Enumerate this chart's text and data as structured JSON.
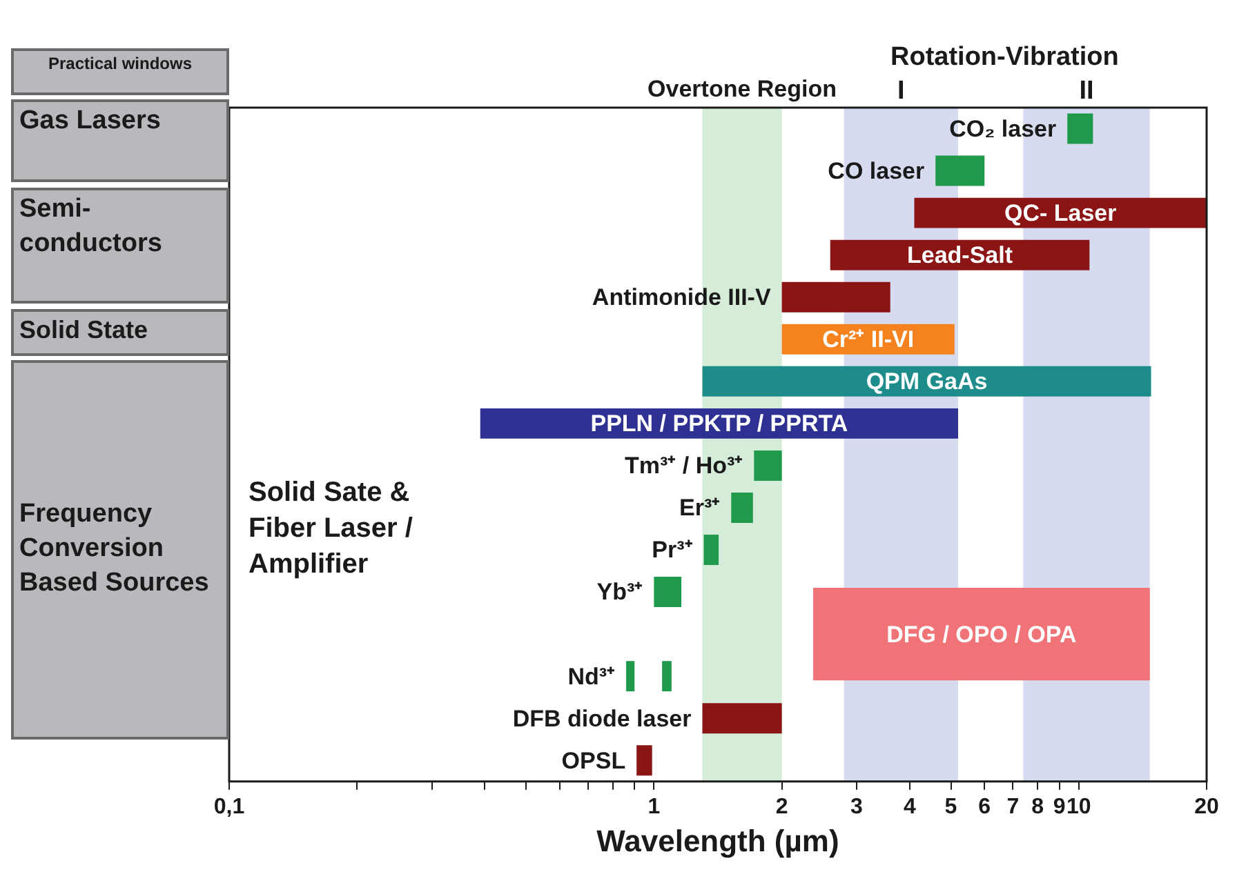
{
  "chart_data": {
    "type": "bar",
    "orientation": "horizontal",
    "log": "x",
    "categories": [
      "CO₂ laser",
      "CO laser",
      "QC- Laser",
      "Lead-Salt",
      "Antimonide III-V",
      "Cr²⁺ II-VI",
      "QPM GaAs",
      "PPLN / PPKTP / PPRTA",
      "Tm³⁺ / Ho³⁺",
      "Er³⁺",
      "Pr³⁺",
      "Yb³⁺",
      "DFG / OPO / OPA",
      "Nd³⁺",
      "DFB diode laser",
      "OPSL"
    ],
    "series": [
      {
        "base": [
          9.4,
          4.6,
          4.1,
          2.6,
          2.0,
          2.0,
          1.3,
          0.39,
          1.72,
          1.52,
          1.31,
          1.0,
          null,
          0.86,
          1.3,
          0.91
        ],
        "values": [
          1.4,
          1.4,
          15.9,
          8.0,
          1.6,
          3.1,
          13.5,
          4.81,
          0.28,
          0.19,
          0.11,
          0.16,
          null,
          0.04,
          0.7,
          0.08
        ],
        "colors": [
          "#1f9a4a",
          "#1f9a4a",
          "#8b1414",
          "#8b1414",
          "#8b1414",
          "#f5821f",
          "#1e8c8a",
          "#2e3192",
          "#1f9a4a",
          "#1f9a4a",
          "#1f9a4a",
          "#1f9a4a",
          null,
          "#1f9a4a",
          "#8b1414",
          "#8b1414"
        ]
      },
      {
        "base": [
          null,
          null,
          null,
          null,
          null,
          null,
          null,
          null,
          null,
          null,
          null,
          null,
          2.37,
          null,
          null,
          null
        ],
        "values": [
          null,
          null,
          null,
          null,
          null,
          null,
          null,
          null,
          null,
          null,
          null,
          null,
          12.33,
          null,
          null,
          null
        ],
        "color": "#f07378"
      },
      {
        "base": [
          null,
          null,
          null,
          null,
          null,
          null,
          null,
          null,
          null,
          null,
          null,
          null,
          null,
          1.045,
          null,
          null
        ],
        "values": [
          null,
          null,
          null,
          null,
          null,
          null,
          null,
          null,
          null,
          null,
          null,
          null,
          null,
          0.055,
          null,
          null
        ],
        "color": "#1f9a4a"
      }
    ],
    "xlim": [
      0.1,
      20
    ],
    "xticks": [
      {
        "value": 0.1,
        "label": "0,1"
      },
      {
        "value": 0.2,
        "label": null
      },
      {
        "value": 0.3,
        "label": null
      },
      {
        "value": 0.4,
        "label": null
      },
      {
        "value": 0.5,
        "label": null
      },
      {
        "value": 0.6,
        "label": null
      },
      {
        "value": 0.7,
        "label": null
      },
      {
        "value": 0.8,
        "label": null
      },
      {
        "value": 0.9,
        "label": null
      },
      1,
      2,
      3,
      4,
      5,
      6,
      7,
      8,
      9,
      10,
      20
    ],
    "xlabel": "Wavelength (µm)",
    "tick_labels": "x",
    "bands": [
      {
        "axis": "x",
        "from": 1.3,
        "to": 2,
        "label": "Overtone Region",
        "color": "#3aa84e"
      },
      {
        "axis": "x",
        "from": 2.8,
        "to": 5.2,
        "label": "I",
        "color": "#4a5ab8"
      },
      {
        "axis": "x",
        "from": 7.4,
        "to": 14.7,
        "label": "II",
        "color": "#4a5ab8"
      }
    ],
    "annotations": [
      "Practical windows",
      "Gas Lasers",
      "Semi-conductors",
      "Solid State",
      "Frequency Conversion Based Sources",
      "Rotation-Vibration",
      "Solid Sate & Fiber Laser / Amplifier"
    ],
    "legend": false
  }
}
